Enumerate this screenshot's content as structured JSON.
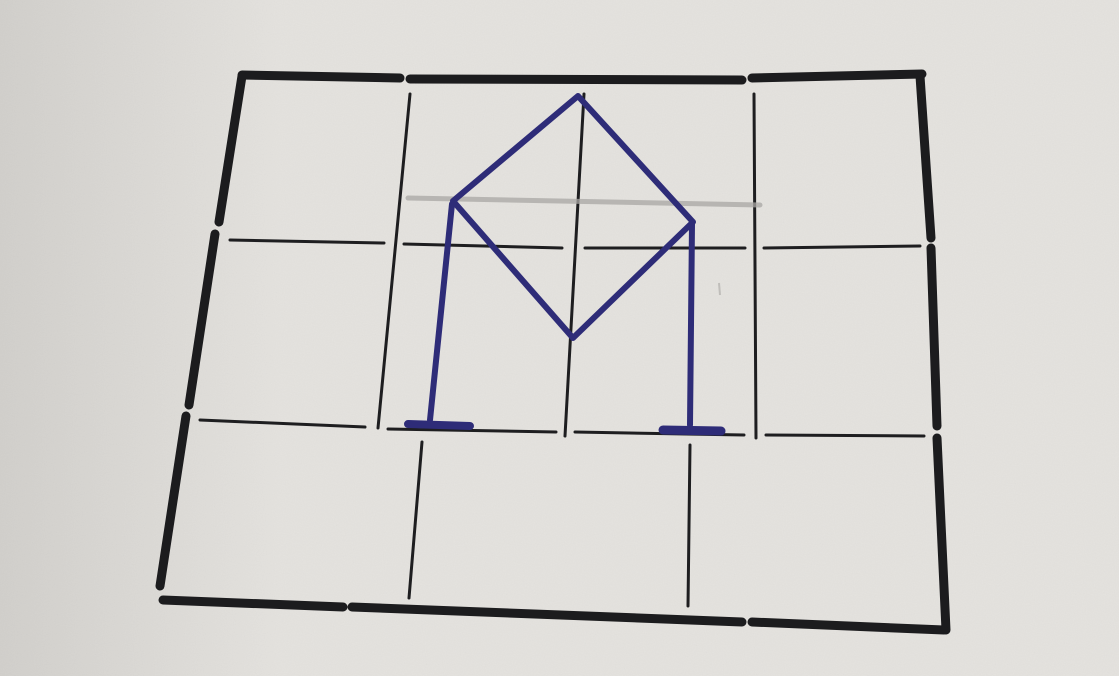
{
  "image": {
    "subject": "",
    "colors": {
      "paper": "#e6e4e0",
      "paper_shadow": "#d2d0cc",
      "marker": "#1c1c1e",
      "pen": "#2e2c78",
      "pencil": "#a9a7a4"
    }
  }
}
